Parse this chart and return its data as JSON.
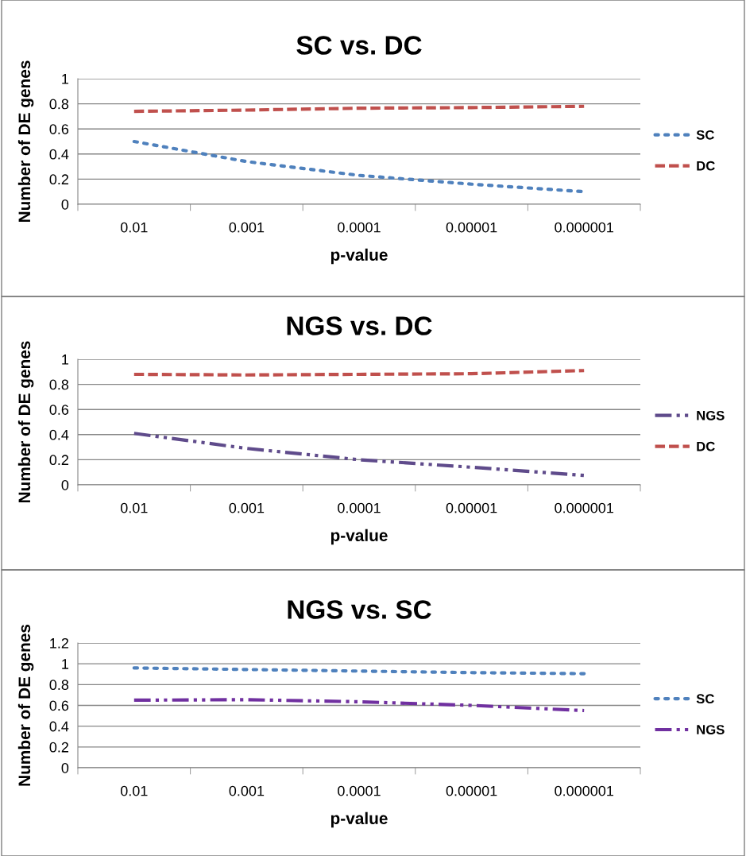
{
  "chart_data": [
    {
      "type": "line",
      "title": "SC vs. DC",
      "xlabel": "p-value",
      "ylabel": "Number of DE genes",
      "categories": [
        "0.01",
        "0.001",
        "0.0001",
        "0.00001",
        "0.000001"
      ],
      "ylim": [
        0,
        1
      ],
      "yticks": [
        0,
        0.2,
        0.4,
        0.6,
        0.8,
        1
      ],
      "grid": "y",
      "legend": "right",
      "series": [
        {
          "name": "SC",
          "color": "#4f81bd",
          "line_style": "dotted",
          "values": [
            0.5,
            0.34,
            0.23,
            0.16,
            0.1
          ]
        },
        {
          "name": "DC",
          "color": "#c0504d",
          "line_style": "dashed",
          "values": [
            0.74,
            0.75,
            0.765,
            0.77,
            0.78
          ]
        }
      ]
    },
    {
      "type": "line",
      "title": "NGS vs. DC",
      "xlabel": "p-value",
      "ylabel": "Number of DE genes",
      "categories": [
        "0.01",
        "0.001",
        "0.0001",
        "0.00001",
        "0.000001"
      ],
      "ylim": [
        0,
        1
      ],
      "yticks": [
        0,
        0.2,
        0.4,
        0.6,
        0.8,
        1
      ],
      "grid": "y",
      "legend": "right",
      "series": [
        {
          "name": "NGS",
          "color": "#5f4b8b",
          "line_style": "dashdot",
          "values": [
            0.41,
            0.29,
            0.2,
            0.14,
            0.075
          ]
        },
        {
          "name": "DC",
          "color": "#c0504d",
          "line_style": "dashed",
          "values": [
            0.88,
            0.875,
            0.88,
            0.885,
            0.91
          ]
        }
      ]
    },
    {
      "type": "line",
      "title": "NGS vs. SC",
      "xlabel": "p-value",
      "ylabel": "Number of DE genes",
      "categories": [
        "0.01",
        "0.001",
        "0.0001",
        "0.00001",
        "0.000001"
      ],
      "ylim": [
        0,
        1.2
      ],
      "yticks": [
        0,
        0.2,
        0.4,
        0.6,
        0.8,
        1,
        1.2
      ],
      "grid": "y",
      "legend": "right",
      "series": [
        {
          "name": "SC",
          "color": "#4f81bd",
          "line_style": "dotted",
          "values": [
            0.96,
            0.945,
            0.93,
            0.915,
            0.905
          ]
        },
        {
          "name": "NGS",
          "color": "#7030a0",
          "line_style": "dashdot",
          "values": [
            0.65,
            0.655,
            0.635,
            0.6,
            0.55
          ]
        }
      ]
    }
  ]
}
